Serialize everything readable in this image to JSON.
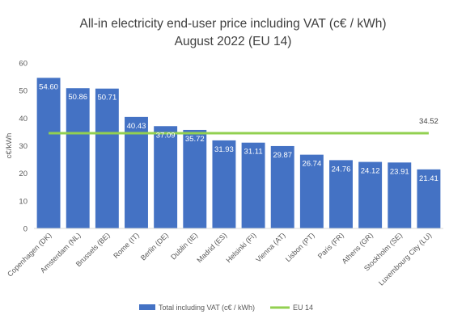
{
  "chart_data": {
    "type": "bar",
    "title_lines": [
      "All-in electricity end-user price including VAT (c€ / kWh)",
      "August 2022 (EU 14)"
    ],
    "ylabel": "c€/kWh",
    "xlabel": "",
    "ylim": [
      0,
      60
    ],
    "yticks": [
      0,
      10,
      20,
      30,
      40,
      50,
      60
    ],
    "grid": false,
    "legend_position": "bottom",
    "categories": [
      "Copenhagen (DK)",
      "Amsterdam (NL)",
      "Brussels (BE)",
      "Rome (IT)",
      "Berlin (DE)",
      "Dublin (IE)",
      "Madrid (ES)",
      "Helsinki (FI)",
      "Vienna (AT)",
      "Lisbon (PT)",
      "Paris (FR)",
      "Athens (GR)",
      "Stockholm (SE)",
      "Luxembourg City (LU)"
    ],
    "series": [
      {
        "name": "Total including VAT (c€ / kWh)",
        "type": "bar",
        "color": "#4472C4",
        "values": [
          54.6,
          50.86,
          50.71,
          40.43,
          37.09,
          35.72,
          31.93,
          31.11,
          29.87,
          26.74,
          24.76,
          24.12,
          23.91,
          21.41
        ],
        "value_labels": [
          "54.60",
          "50.86",
          "50.71",
          "40.43",
          "37.09",
          "35.72",
          "31.93",
          "31.11",
          "29.87",
          "26.74",
          "24.76",
          "24.12",
          "23.91",
          "21.41"
        ]
      },
      {
        "name": "EU 14",
        "type": "line",
        "color": "#92D050",
        "value": 34.52,
        "value_label": "34.52"
      }
    ]
  }
}
